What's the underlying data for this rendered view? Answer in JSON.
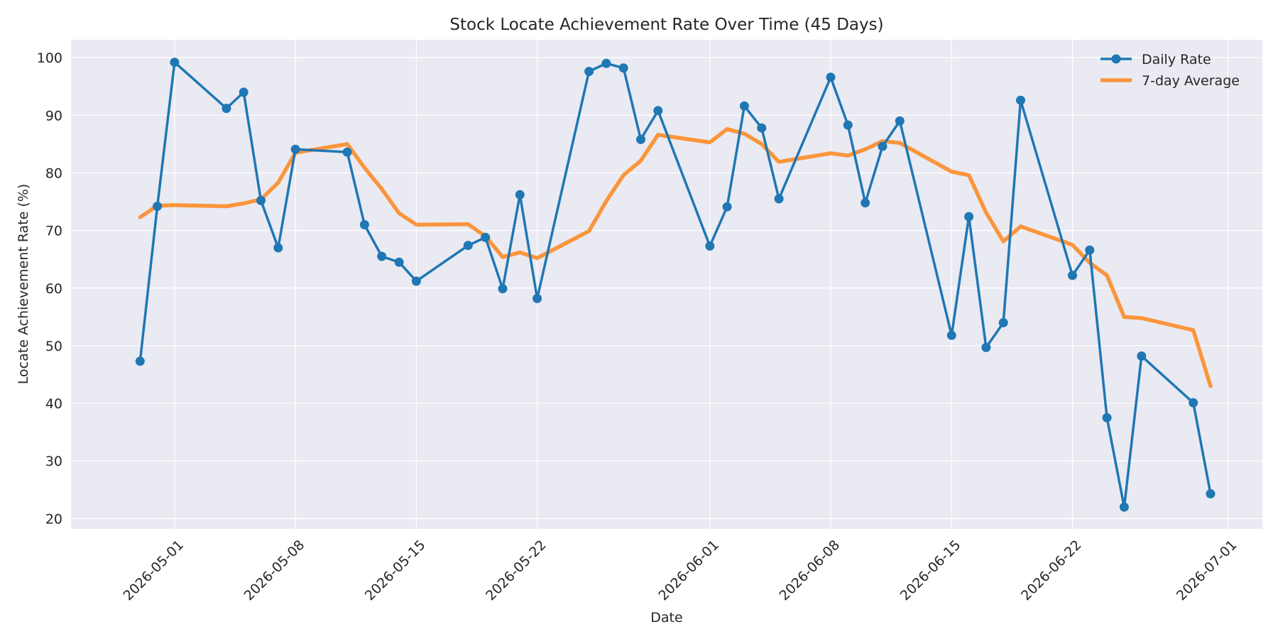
{
  "chart_data": {
    "type": "line",
    "title": "Stock Locate Achievement Rate Over Time (45 Days)",
    "xlabel": "Date",
    "ylabel": "Locate Achievement Rate (%)",
    "xlim": [
      "2026-04-25",
      "2026-07-03"
    ],
    "ylim": [
      18.2,
      103.1
    ],
    "x_ticks": [
      "2026-05-01",
      "2026-05-08",
      "2026-05-15",
      "2026-05-22",
      "2026-06-01",
      "2026-06-08",
      "2026-06-15",
      "2026-06-22",
      "2026-07-01"
    ],
    "y_ticks": [
      20,
      30,
      40,
      50,
      60,
      70,
      80,
      90,
      100
    ],
    "grid": true,
    "legend_position": "top-right",
    "colors": {
      "daily": "#1f77b4",
      "average": "#ff7f0e",
      "background": "#eaeaf2",
      "grid": "#ffffff"
    },
    "series": [
      {
        "name": "Daily Rate",
        "style": "line-with-markers",
        "points": [
          [
            "2026-04-29",
            47.3
          ],
          [
            "2026-04-30",
            74.2
          ],
          [
            "2026-05-01",
            99.2
          ],
          [
            "2026-05-04",
            91.2
          ],
          [
            "2026-05-05",
            94.0
          ],
          [
            "2026-05-06",
            75.2
          ],
          [
            "2026-05-07",
            67.0
          ],
          [
            "2026-05-08",
            84.1
          ],
          [
            "2026-05-11",
            83.6
          ],
          [
            "2026-05-12",
            71.0
          ],
          [
            "2026-05-13",
            65.5
          ],
          [
            "2026-05-14",
            64.5
          ],
          [
            "2026-05-15",
            61.2
          ],
          [
            "2026-05-18",
            67.4
          ],
          [
            "2026-05-19",
            68.8
          ],
          [
            "2026-05-20",
            59.9
          ],
          [
            "2026-05-21",
            76.2
          ],
          [
            "2026-05-22",
            58.2
          ],
          [
            "2026-05-25",
            97.6
          ],
          [
            "2026-05-26",
            99.0
          ],
          [
            "2026-05-27",
            98.2
          ],
          [
            "2026-05-28",
            85.8
          ],
          [
            "2026-05-29",
            90.8
          ],
          [
            "2026-06-01",
            67.3
          ],
          [
            "2026-06-02",
            74.1
          ],
          [
            "2026-06-03",
            91.6
          ],
          [
            "2026-06-04",
            87.8
          ],
          [
            "2026-06-05",
            75.5
          ],
          [
            "2026-06-08",
            96.6
          ],
          [
            "2026-06-09",
            88.3
          ],
          [
            "2026-06-10",
            74.8
          ],
          [
            "2026-06-11",
            84.6
          ],
          [
            "2026-06-12",
            89.0
          ],
          [
            "2026-06-15",
            51.8
          ],
          [
            "2026-06-16",
            72.4
          ],
          [
            "2026-06-17",
            49.7
          ],
          [
            "2026-06-18",
            54.0
          ],
          [
            "2026-06-19",
            92.6
          ],
          [
            "2026-06-22",
            62.2
          ],
          [
            "2026-06-23",
            66.6
          ],
          [
            "2026-06-24",
            37.5
          ],
          [
            "2026-06-25",
            22.0
          ],
          [
            "2026-06-26",
            48.2
          ],
          [
            "2026-06-29",
            40.1
          ],
          [
            "2026-06-30",
            24.3
          ]
        ]
      },
      {
        "name": "7-day Average",
        "style": "line",
        "points": [
          [
            "2026-04-29",
            72.3
          ],
          [
            "2026-04-30",
            74.3
          ],
          [
            "2026-05-01",
            74.4
          ],
          [
            "2026-05-04",
            74.2
          ],
          [
            "2026-05-05",
            74.7
          ],
          [
            "2026-05-06",
            75.4
          ],
          [
            "2026-05-07",
            78.3
          ],
          [
            "2026-05-08",
            83.5
          ],
          [
            "2026-05-11",
            85.0
          ],
          [
            "2026-05-12",
            80.9
          ],
          [
            "2026-05-13",
            77.2
          ],
          [
            "2026-05-14",
            73.0
          ],
          [
            "2026-05-15",
            71.0
          ],
          [
            "2026-05-18",
            71.1
          ],
          [
            "2026-05-19",
            69.0
          ],
          [
            "2026-05-20",
            65.4
          ],
          [
            "2026-05-21",
            66.2
          ],
          [
            "2026-05-22",
            65.2
          ],
          [
            "2026-05-25",
            69.9
          ],
          [
            "2026-05-26",
            75.1
          ],
          [
            "2026-05-27",
            79.6
          ],
          [
            "2026-05-28",
            82.1
          ],
          [
            "2026-05-29",
            86.6
          ],
          [
            "2026-06-01",
            85.3
          ],
          [
            "2026-06-02",
            87.6
          ],
          [
            "2026-06-03",
            86.8
          ],
          [
            "2026-06-04",
            85.0
          ],
          [
            "2026-06-05",
            81.9
          ],
          [
            "2026-06-08",
            83.4
          ],
          [
            "2026-06-09",
            83.0
          ],
          [
            "2026-06-10",
            84.1
          ],
          [
            "2026-06-11",
            85.5
          ],
          [
            "2026-06-12",
            85.2
          ],
          [
            "2026-06-15",
            80.2
          ],
          [
            "2026-06-16",
            79.6
          ],
          [
            "2026-06-17",
            73.1
          ],
          [
            "2026-06-18",
            68.1
          ],
          [
            "2026-06-19",
            70.7
          ],
          [
            "2026-06-22",
            67.5
          ],
          [
            "2026-06-23",
            64.4
          ],
          [
            "2026-06-24",
            62.2
          ],
          [
            "2026-06-25",
            55.0
          ],
          [
            "2026-06-26",
            54.8
          ],
          [
            "2026-06-29",
            52.7
          ],
          [
            "2026-06-30",
            43.0
          ]
        ]
      }
    ]
  }
}
